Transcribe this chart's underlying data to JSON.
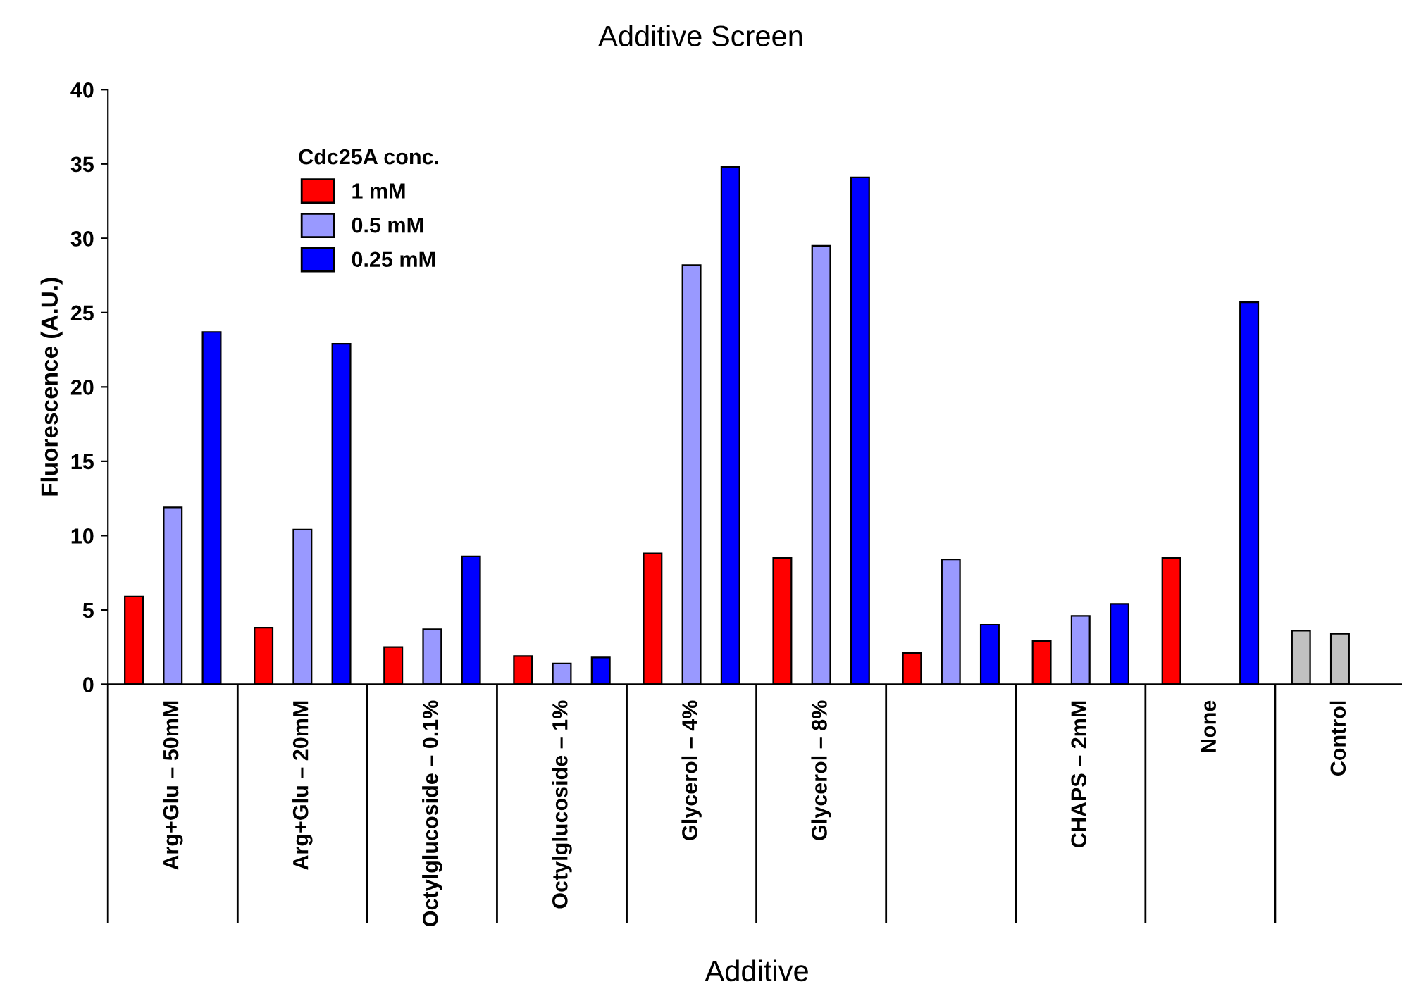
{
  "chart_data": {
    "type": "bar",
    "title": "Additive Screen",
    "xlabel": "Additive",
    "ylabel": "Fluorescence (A.U.)",
    "legend_title": "Cdc25A conc.",
    "legend": "top left",
    "grid": false,
    "categories": [
      "Arg+Glu – 50mM",
      "Arg+Glu – 20mM",
      "Octylglucoside – 0.1%",
      "Octylglucoside – 1%",
      "Glycerol – 4%",
      "Glycerol – 8%",
      null,
      "CHAPS – 2mM",
      "None",
      "Control"
    ],
    "series": [
      {
        "name": "1 mM",
        "color": "#ff0000",
        "colors": [
          "#ff0000",
          "#ff0000",
          "#ff0000",
          "#ff0000",
          "#ff0000",
          "#ff0000",
          "#ff0000",
          "#ff0000",
          "#ff0000",
          "#c0c0c0"
        ],
        "values": [
          5.9,
          3.8,
          2.5,
          1.9,
          8.8,
          8.5,
          2.1,
          2.9,
          8.5,
          3.6
        ]
      },
      {
        "name": "0.5 mM",
        "color": "#9999ff",
        "colors": [
          "#9999ff",
          "#9999ff",
          "#9999ff",
          "#9999ff",
          "#9999ff",
          "#9999ff",
          "#9999ff",
          "#9999ff",
          "#9999ff",
          "#c0c0c0"
        ],
        "values": [
          11.9,
          10.4,
          3.7,
          1.4,
          28.2,
          29.5,
          8.4,
          4.6,
          null,
          3.4
        ]
      },
      {
        "name": "0.25 mM",
        "color": "#0000ff",
        "values": [
          23.7,
          22.9,
          8.6,
          1.8,
          34.8,
          34.1,
          4.0,
          5.4,
          25.7,
          null
        ]
      }
    ],
    "ylim": [
      0,
      40
    ],
    "yticks": [
      0,
      5,
      10,
      15,
      20,
      25,
      30,
      35,
      40
    ]
  }
}
